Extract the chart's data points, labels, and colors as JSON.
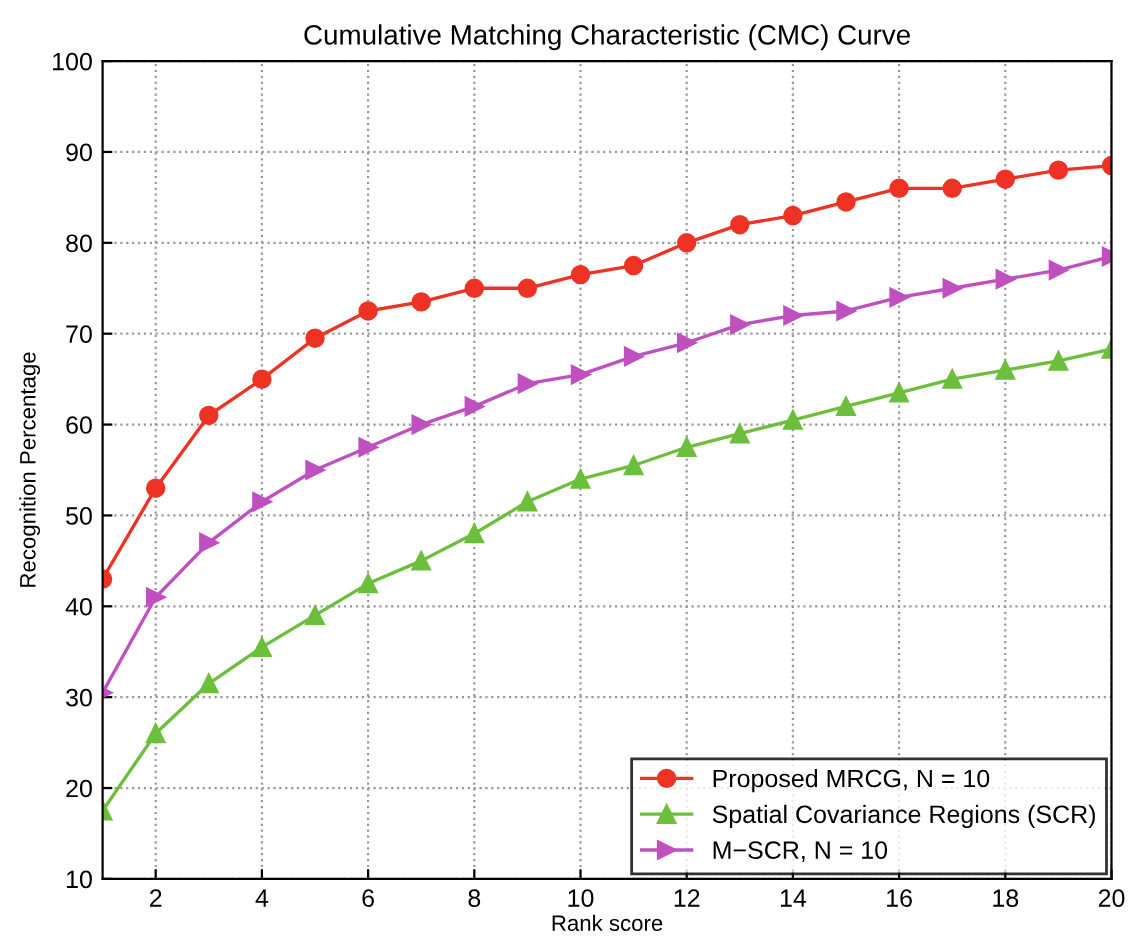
{
  "chart_data": {
    "type": "line",
    "title": "Cumulative Matching Characteristic (CMC) Curve",
    "xlabel": "Rank score",
    "ylabel": "Recognition Percentage",
    "x": [
      1,
      2,
      3,
      4,
      5,
      6,
      7,
      8,
      9,
      10,
      11,
      12,
      13,
      14,
      15,
      16,
      17,
      18,
      19,
      20
    ],
    "series": [
      {
        "name": "Proposed MRCG, N = 10",
        "color": "#ee3224",
        "marker": "circle",
        "values": [
          43,
          53,
          61,
          65,
          69.5,
          72.5,
          73.5,
          75,
          75,
          76.5,
          77.5,
          80,
          82,
          83,
          84.5,
          86,
          86,
          87,
          88,
          88.5
        ]
      },
      {
        "name": "Spatial Covariance Regions (SCR)",
        "color": "#6cbf3c",
        "marker": "triangle",
        "values": [
          17.5,
          26,
          31.5,
          35.5,
          39,
          42.5,
          45,
          48,
          51.5,
          54,
          55.5,
          57.5,
          59,
          60.5,
          62,
          63.5,
          65,
          66,
          67,
          68.3
        ]
      },
      {
        "name": "M−SCR, N = 10",
        "color": "#c050c0",
        "marker": "triangle_right",
        "values": [
          30.5,
          41,
          47,
          51.5,
          55,
          57.5,
          60,
          62,
          64.5,
          65.5,
          67.5,
          69,
          71,
          72,
          72.5,
          74,
          75,
          76,
          77,
          78.5
        ]
      }
    ],
    "xlim": [
      1,
      20
    ],
    "xticks": [
      2,
      4,
      6,
      8,
      10,
      12,
      14,
      16,
      18,
      20
    ],
    "ylim": [
      10,
      100
    ],
    "yticks": [
      10,
      20,
      30,
      40,
      50,
      60,
      70,
      80,
      90,
      100
    ],
    "grid": true,
    "legend": "bottom right",
    "line_style": "solid"
  }
}
